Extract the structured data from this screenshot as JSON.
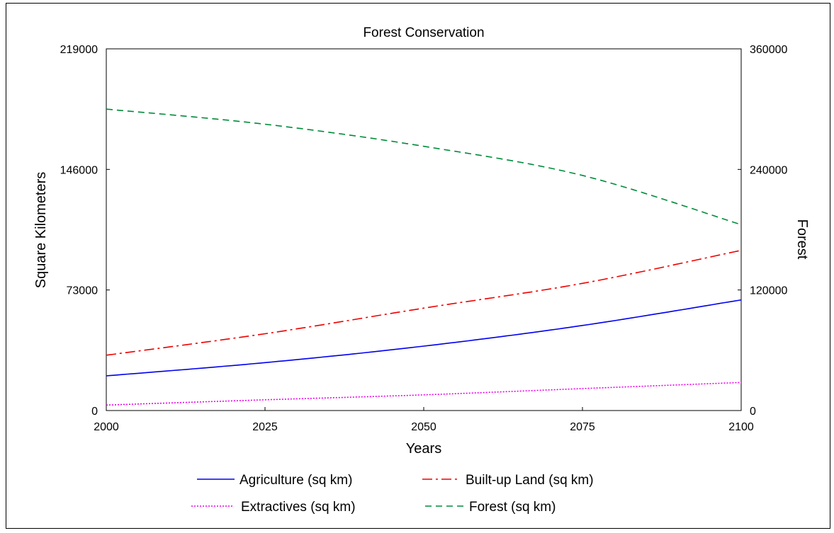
{
  "chart_data": {
    "type": "line",
    "title": "Forest Conservation",
    "xlabel": "Years",
    "ylabel_left": "Square Kilometers",
    "ylabel_right": "Forest",
    "xlim": [
      2000,
      2100
    ],
    "ylim_left": [
      0,
      219000
    ],
    "ylim_right": [
      0,
      360000
    ],
    "x_ticks": [
      "2000",
      "2025",
      "2050",
      "2075",
      "2100"
    ],
    "y_ticks_left": [
      "0",
      "73000",
      "146000",
      "219000"
    ],
    "y_ticks_right": [
      "0",
      "120000",
      "240000",
      "360000"
    ],
    "grid": false,
    "legend_position": "bottom",
    "x": [
      2000,
      2025,
      2050,
      2075,
      2100
    ],
    "series": [
      {
        "name": "Agriculture (sq km)",
        "axis": "left",
        "color": "#0000ee",
        "dash": "solid",
        "values": [
          21000,
          29000,
          39000,
          51500,
          67000
        ]
      },
      {
        "name": "Built-up Land (sq km)",
        "axis": "left",
        "color": "#ee0000",
        "dash": "dashdot",
        "values": [
          33500,
          46500,
          62000,
          77000,
          97000
        ]
      },
      {
        "name": "Extractives (sq km)",
        "axis": "left",
        "color": "#ee00ee",
        "dash": "dotted",
        "values": [
          3300,
          6500,
          9500,
          13300,
          17000
        ]
      },
      {
        "name": "Forest (sq km)",
        "axis": "right",
        "color": "#008b3a",
        "dash": "dashed",
        "values": [
          300000,
          285000,
          263000,
          234000,
          185000
        ]
      }
    ]
  }
}
